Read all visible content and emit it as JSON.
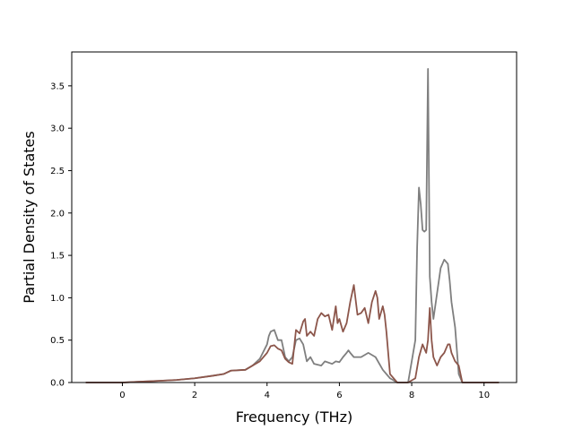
{
  "chart_data": {
    "type": "line",
    "title": "",
    "xlabel": "Frequency (THz)",
    "ylabel": "Partial Density of States",
    "xlim": [
      -1.4,
      10.9
    ],
    "ylim": [
      0,
      3.9
    ],
    "xticks": [
      0,
      2,
      4,
      6,
      8,
      10
    ],
    "xtick_labels": [
      "0",
      "2",
      "4",
      "6",
      "8",
      "10"
    ],
    "yticks": [
      0.0,
      0.5,
      1.0,
      1.5,
      2.0,
      2.5,
      3.0,
      3.5
    ],
    "ytick_labels": [
      "0.0",
      "0.5",
      "1.0",
      "1.5",
      "2.0",
      "2.5",
      "3.0",
      "3.5"
    ],
    "grid": false,
    "legend": "none",
    "series": [
      {
        "color": "#8c564b",
        "x": [
          -1.0,
          0.0,
          0.5,
          1.0,
          1.5,
          2.0,
          2.5,
          2.8,
          3.0,
          3.4,
          3.6,
          3.8,
          4.0,
          4.1,
          4.2,
          4.3,
          4.4,
          4.5,
          4.6,
          4.7,
          4.8,
          4.85,
          4.9,
          5.0,
          5.05,
          5.1,
          5.2,
          5.3,
          5.4,
          5.5,
          5.6,
          5.7,
          5.8,
          5.9,
          5.95,
          6.0,
          6.1,
          6.2,
          6.3,
          6.4,
          6.5,
          6.6,
          6.7,
          6.8,
          6.9,
          7.0,
          7.05,
          7.1,
          7.2,
          7.25,
          7.3,
          7.4,
          7.6,
          7.9,
          8.1,
          8.2,
          8.3,
          8.4,
          8.45,
          8.5,
          8.55,
          8.6,
          8.7,
          8.8,
          8.9,
          9.0,
          9.05,
          9.1,
          9.2,
          9.3,
          9.4,
          9.6,
          10.0,
          10.4
        ],
        "y": [
          0.0,
          0.0,
          0.01,
          0.02,
          0.03,
          0.05,
          0.08,
          0.1,
          0.14,
          0.15,
          0.2,
          0.25,
          0.35,
          0.43,
          0.44,
          0.4,
          0.38,
          0.28,
          0.24,
          0.22,
          0.62,
          0.6,
          0.58,
          0.72,
          0.75,
          0.55,
          0.6,
          0.55,
          0.75,
          0.82,
          0.78,
          0.8,
          0.62,
          0.9,
          0.7,
          0.75,
          0.6,
          0.7,
          0.95,
          1.15,
          0.8,
          0.82,
          0.88,
          0.7,
          0.95,
          1.08,
          1.0,
          0.75,
          0.9,
          0.8,
          0.6,
          0.1,
          0.0,
          0.0,
          0.05,
          0.3,
          0.45,
          0.35,
          0.5,
          0.88,
          0.5,
          0.3,
          0.2,
          0.3,
          0.35,
          0.45,
          0.45,
          0.35,
          0.25,
          0.2,
          0.0,
          0.0,
          0.0,
          0.0
        ]
      },
      {
        "color": "#7f7f7f",
        "x": [
          -1.0,
          0.0,
          0.5,
          1.0,
          1.5,
          2.0,
          2.5,
          2.8,
          3.0,
          3.4,
          3.6,
          3.8,
          4.0,
          4.05,
          4.1,
          4.2,
          4.3,
          4.4,
          4.5,
          4.6,
          4.7,
          4.8,
          4.9,
          5.0,
          5.1,
          5.2,
          5.3,
          5.5,
          5.6,
          5.8,
          5.9,
          6.0,
          6.1,
          6.2,
          6.25,
          6.3,
          6.4,
          6.6,
          6.8,
          7.0,
          7.2,
          7.4,
          7.6,
          7.9,
          8.0,
          8.1,
          8.15,
          8.2,
          8.25,
          8.3,
          8.35,
          8.4,
          8.45,
          8.5,
          8.55,
          8.6,
          8.7,
          8.8,
          8.9,
          9.0,
          9.05,
          9.1,
          9.2,
          9.3,
          9.4,
          9.6,
          10.0,
          10.4
        ],
        "y": [
          0.0,
          0.0,
          0.01,
          0.02,
          0.03,
          0.05,
          0.08,
          0.1,
          0.14,
          0.15,
          0.2,
          0.28,
          0.45,
          0.55,
          0.6,
          0.62,
          0.5,
          0.5,
          0.3,
          0.25,
          0.3,
          0.5,
          0.52,
          0.45,
          0.25,
          0.3,
          0.22,
          0.2,
          0.25,
          0.22,
          0.25,
          0.24,
          0.3,
          0.35,
          0.38,
          0.35,
          0.3,
          0.3,
          0.35,
          0.3,
          0.15,
          0.05,
          0.0,
          0.0,
          0.25,
          0.5,
          1.6,
          2.3,
          2.1,
          1.8,
          1.78,
          1.8,
          3.7,
          1.25,
          0.95,
          0.75,
          1.05,
          1.35,
          1.45,
          1.4,
          1.2,
          0.95,
          0.65,
          0.1,
          0.0,
          0.0,
          0.0,
          0.0
        ]
      }
    ]
  }
}
